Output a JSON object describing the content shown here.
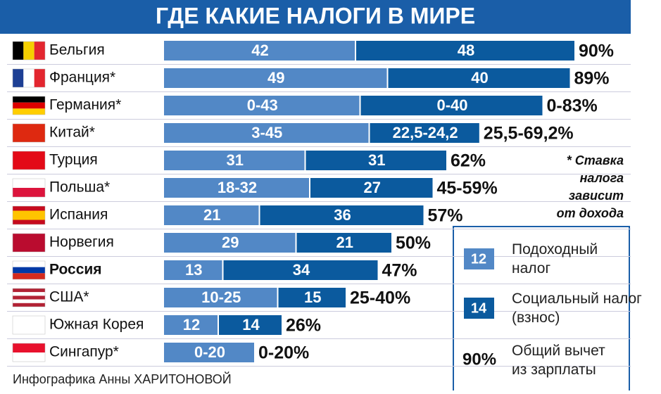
{
  "chart_data": {
    "type": "bar",
    "stacked": true,
    "orientation": "horizontal",
    "title": "ГДЕ КАКИЕ НАЛОГИ В МИРЕ",
    "categories": [
      "Бельгия",
      "Франция*",
      "Германия*",
      "Китай*",
      "Турция",
      "Польша*",
      "Испания",
      "Норвегия",
      "Россия",
      "США*",
      "Южная Корея",
      "Сингапур*"
    ],
    "highlight_index": 8,
    "series": [
      {
        "name": "Подоходный налог",
        "color": "#5288c6",
        "values": [
          42,
          49,
          43,
          45,
          31,
          32,
          21,
          29,
          13,
          25,
          12,
          20
        ],
        "value_labels": [
          "42",
          "49",
          "0-43",
          "3-45",
          "31",
          "18-32",
          "21",
          "29",
          "13",
          "10-25",
          "12",
          "0-20"
        ]
      },
      {
        "name": "Социальный налог (взнос)",
        "color": "#0b5a9e",
        "values": [
          48,
          40,
          40,
          24.2,
          31,
          27,
          36,
          21,
          34,
          15,
          14,
          null
        ],
        "value_labels": [
          "48",
          "40",
          "0-40",
          "22,5-24,2",
          "31",
          "27",
          "36",
          "21",
          "34",
          "15",
          "14",
          null
        ]
      }
    ],
    "totals": {
      "name": "Общий вычет из зарплаты",
      "values": [
        90,
        89,
        83,
        69.2,
        62,
        59,
        57,
        50,
        47,
        40,
        26,
        20
      ],
      "value_labels": [
        "90%",
        "89%",
        "0-83%",
        "25,5-69,2%",
        "62%",
        "45-59%",
        "57%",
        "50%",
        "47%",
        "25-40%",
        "26%",
        "0-20%"
      ]
    },
    "legend_samples": [
      "12",
      "14",
      "90%"
    ],
    "note": [
      "* Ставка",
      "налога",
      "зависит",
      "от дохода"
    ],
    "credit": "Инфографика Анны ХАРИТОНОВОЙ"
  }
}
